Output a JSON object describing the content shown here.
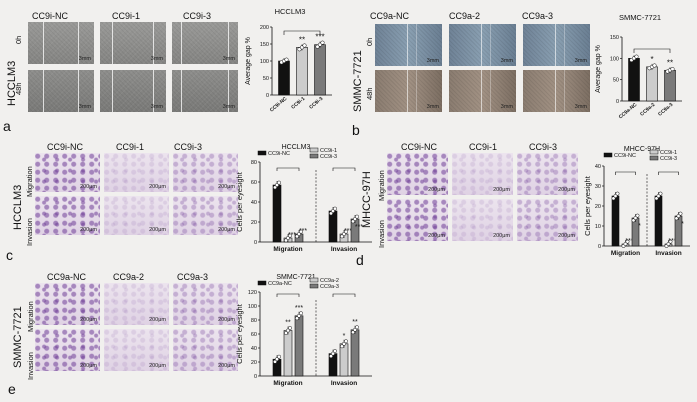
{
  "panels": [
    "a",
    "b",
    "c",
    "d",
    "e"
  ],
  "scale": {
    "a": "3mm",
    "b": "3mm",
    "c": "200μm",
    "d": "200μm",
    "e": "200μm"
  },
  "panel_a": {
    "columns": [
      "CC9i-NC",
      "CC9i-1",
      "CC9i-3"
    ],
    "cell_line": "HCCLM3",
    "rows": [
      "0h",
      "48h"
    ]
  },
  "panel_b": {
    "columns": [
      "CC9a-NC",
      "CC9a-2",
      "CC9a-3"
    ],
    "cell_line": "SMMC-7721",
    "rows": [
      "0h",
      "48h"
    ]
  },
  "panel_c": {
    "columns": [
      "CC9i-NC",
      "CC9i-1",
      "CC9i-3"
    ],
    "cell_line": "HCCLM3",
    "rows": [
      "Migration",
      "Invasion"
    ]
  },
  "panel_d": {
    "columns": [
      "CC9i-NC",
      "CC9i-1",
      "CC9i-3"
    ],
    "cell_line": "MHCC-97H",
    "rows": [
      "Migration",
      "Invasion"
    ]
  },
  "panel_e": {
    "columns": [
      "CC9a-NC",
      "CC9a-2",
      "CC9a-3"
    ],
    "cell_line": "SMMC-7721",
    "rows": [
      "Migration",
      "Invasion"
    ]
  },
  "colors": {
    "black": "#111111",
    "light": "#cccccc",
    "dark": "#7a7a7a",
    "wound": "#8c8c8a",
    "stain": "#8a58a8"
  },
  "chart_data": [
    {
      "type": "bar",
      "title": "HCCLM3",
      "ylabel": "Average gap %",
      "categories": [
        "CC9i-NC",
        "CC9i-1",
        "CC9i-3"
      ],
      "values": [
        100,
        140,
        148
      ],
      "yticks": [
        0,
        50,
        100,
        150,
        200
      ],
      "ylim": [
        0,
        200
      ],
      "significance": [
        "",
        "**",
        "***"
      ],
      "bar_colors": [
        "#111111",
        "#cccccc",
        "#7a7a7a"
      ]
    },
    {
      "type": "bar",
      "title": "SMMC-7721",
      "ylabel": "Average gap %",
      "categories": [
        "CC9a-NC",
        "CC9a-2",
        "CC9a-3"
      ],
      "values": [
        100,
        80,
        72
      ],
      "yticks": [
        0,
        50,
        100,
        150
      ],
      "ylim": [
        0,
        150
      ],
      "significance": [
        "",
        "*",
        "**"
      ],
      "bar_colors": [
        "#111111",
        "#cccccc",
        "#7a7a7a"
      ]
    },
    {
      "type": "bar",
      "title": "HCCLM3",
      "ylabel": "Cells per eyesight",
      "categories": [
        "Migration",
        "Invasion"
      ],
      "series": [
        {
          "name": "CC9i-NC",
          "values": [
            57,
            31
          ]
        },
        {
          "name": "CC9i-1",
          "values": [
            4,
            8
          ]
        },
        {
          "name": "CC9i-3",
          "values": [
            8,
            23
          ]
        }
      ],
      "significance": [
        [
          "",
          "***",
          "***"
        ],
        [
          "",
          "***",
          "***"
        ]
      ],
      "yticks": [
        0,
        20,
        40,
        60,
        80
      ],
      "ylim": [
        0,
        80
      ],
      "legend": "top",
      "bar_colors": [
        "#111111",
        "#cccccc",
        "#7a7a7a"
      ]
    },
    {
      "type": "bar",
      "title": "MHCC-97H",
      "ylabel": "Cells per eyesight",
      "categories": [
        "Migration",
        "Invasion"
      ],
      "series": [
        {
          "name": "CC9i-NC",
          "values": [
            25,
            25
          ]
        },
        {
          "name": "CC9i-1",
          "values": [
            1,
            1
          ]
        },
        {
          "name": "CC9i-3",
          "values": [
            14,
            15
          ]
        }
      ],
      "significance": [
        [
          "",
          "***",
          "*"
        ],
        [
          "",
          "***",
          "*"
        ]
      ],
      "yticks": [
        0,
        10,
        20,
        30,
        40
      ],
      "ylim": [
        0,
        40
      ],
      "legend": "top",
      "bar_colors": [
        "#111111",
        "#cccccc",
        "#7a7a7a"
      ]
    },
    {
      "type": "bar",
      "title": "SMMC-7721",
      "ylabel": "Cells per eyesight",
      "categories": [
        "Migration",
        "Invasion"
      ],
      "series": [
        {
          "name": "CC9a-NC",
          "values": [
            24,
            32
          ]
        },
        {
          "name": "CC9a-2",
          "values": [
            65,
            46
          ]
        },
        {
          "name": "CC9a-3",
          "values": [
            86,
            66
          ]
        }
      ],
      "significance": [
        [
          "",
          "**",
          "***"
        ],
        [
          "",
          "*",
          "**"
        ]
      ],
      "yticks": [
        0,
        20,
        40,
        60,
        80,
        100,
        120
      ],
      "ylim": [
        0,
        120
      ],
      "legend": "top",
      "bar_colors": [
        "#111111",
        "#cccccc",
        "#7a7a7a"
      ]
    }
  ]
}
